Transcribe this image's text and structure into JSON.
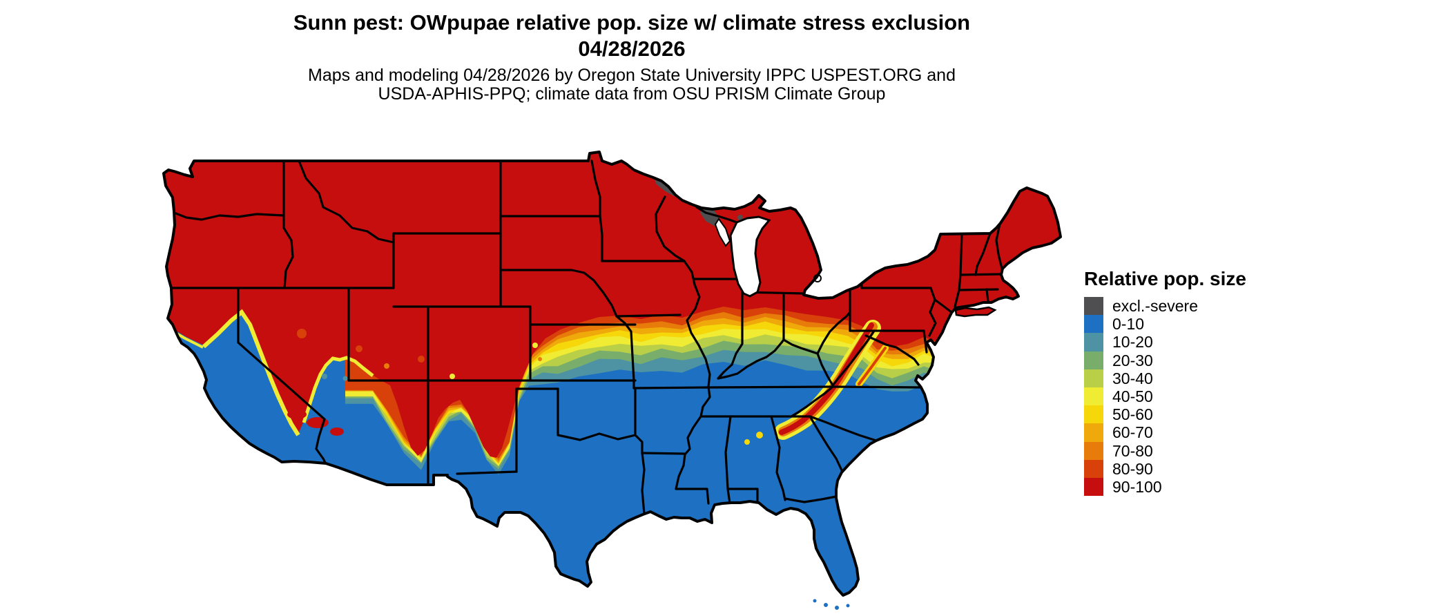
{
  "title": {
    "line1": "Sunn pest: OWpupae relative pop. size w/ climate stress exclusion",
    "line2": "04/28/2026"
  },
  "subtitle": {
    "line1": "Maps and modeling 04/28/2026 by Oregon State University IPPC USPEST.ORG and",
    "line2": "USDA-APHIS-PPQ; climate data from OSU PRISM Climate Group"
  },
  "legend": {
    "title": "Relative pop. size",
    "items": [
      {
        "label": "excl.-severe",
        "color": "#4F4F51"
      },
      {
        "label": "0-10",
        "color": "#1D70C2"
      },
      {
        "label": "10-20",
        "color": "#4D93A3"
      },
      {
        "label": "20-30",
        "color": "#79AD6C"
      },
      {
        "label": "30-40",
        "color": "#BACF48"
      },
      {
        "label": "40-50",
        "color": "#F0EC33"
      },
      {
        "label": "50-60",
        "color": "#F6D80A"
      },
      {
        "label": "60-70",
        "color": "#EFA90A"
      },
      {
        "label": "70-80",
        "color": "#E77C0A"
      },
      {
        "label": "80-90",
        "color": "#D8420A"
      },
      {
        "label": "90-100",
        "color": "#C60E0E"
      }
    ]
  },
  "map": {
    "region": "Continental United States",
    "water_color": "#ffffff",
    "state_border_color": "#000000"
  }
}
